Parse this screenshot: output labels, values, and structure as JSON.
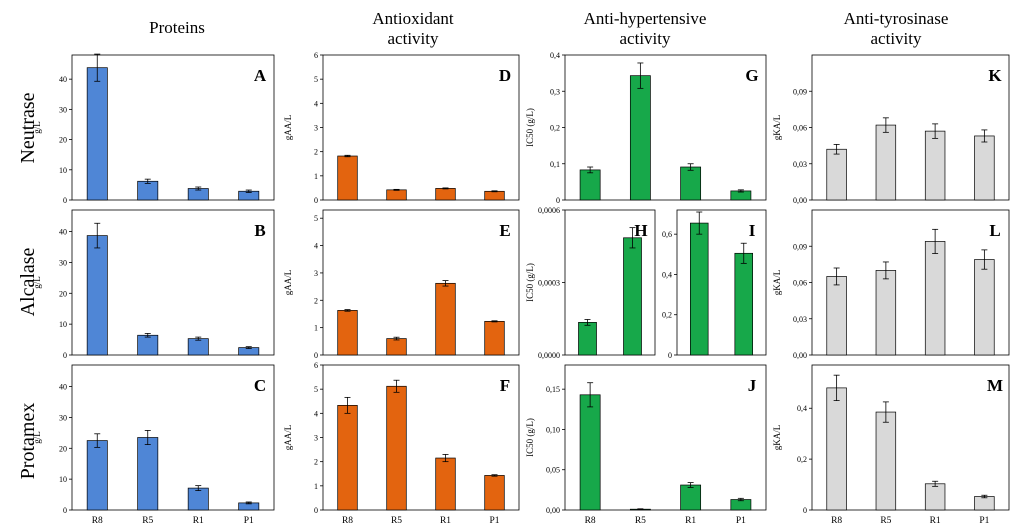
{
  "columns": [
    "Proteins",
    "Antioxidant\nactivity",
    "Anti-hypertensive\nactivity",
    "Anti-tyrosinase\nactivity"
  ],
  "rows": [
    "Neutrase",
    "Alcalase",
    "Protamex"
  ],
  "colors": {
    "blue": "#4f86d6",
    "orange": "#e3640f",
    "green": "#17a84a",
    "gray": "#d9d9d9"
  },
  "chart_data": [
    {
      "id": "A",
      "type": "bar",
      "color": "blue",
      "ylabel": "g/L",
      "ylim": [
        0,
        48
      ],
      "yticks": [
        "0",
        "10",
        "20",
        "30",
        "40"
      ],
      "categories": [
        "R8",
        "R5",
        "R1",
        "P1"
      ],
      "values": [
        43.8,
        6.2,
        3.8,
        2.9
      ],
      "errors": [
        4.5,
        0.7,
        0.5,
        0.4
      ]
    },
    {
      "id": "B",
      "type": "bar",
      "color": "blue",
      "ylabel": "g/L",
      "ylim": [
        0,
        47
      ],
      "yticks": [
        "0",
        "10",
        "20",
        "30",
        "40"
      ],
      "categories": [
        "R8",
        "R5",
        "R1",
        "P1"
      ],
      "values": [
        38.7,
        6.4,
        5.3,
        2.4
      ],
      "errors": [
        4.0,
        0.6,
        0.5,
        0.3
      ]
    },
    {
      "id": "C",
      "type": "bar",
      "color": "blue",
      "ylabel": "g/L",
      "ylim": [
        0,
        47
      ],
      "yticks": [
        "0",
        "10",
        "20",
        "30",
        "40"
      ],
      "categories": [
        "R8",
        "R5",
        "R1",
        "P1"
      ],
      "values": [
        22.5,
        23.5,
        7.1,
        2.3
      ],
      "errors": [
        2.2,
        2.3,
        0.8,
        0.3
      ]
    },
    {
      "id": "D",
      "type": "bar",
      "color": "orange",
      "ylabel": "gAA/L",
      "ylim": [
        0,
        6
      ],
      "yticks": [
        "0",
        "1",
        "2",
        "3",
        "4",
        "5",
        "6"
      ],
      "categories": [
        "R8",
        "R5",
        "R1",
        "P1"
      ],
      "values": [
        1.82,
        0.42,
        0.48,
        0.36
      ],
      "errors": [
        0.03,
        0.02,
        0.02,
        0.02
      ]
    },
    {
      "id": "E",
      "type": "bar",
      "color": "orange",
      "ylabel": "gAA/L",
      "ylim": [
        0,
        5.3
      ],
      "yticks": [
        "0",
        "1",
        "2",
        "3",
        "4",
        "5"
      ],
      "categories": [
        "R8",
        "R5",
        "R1",
        "P1"
      ],
      "values": [
        1.63,
        0.6,
        2.62,
        1.23
      ],
      "errors": [
        0.03,
        0.05,
        0.1,
        0.02
      ]
    },
    {
      "id": "F",
      "type": "bar",
      "color": "orange",
      "ylabel": "gAA/L",
      "ylim": [
        0,
        6
      ],
      "yticks": [
        "0",
        "1",
        "2",
        "3",
        "4",
        "5",
        "6"
      ],
      "categories": [
        "R8",
        "R5",
        "R1",
        "P1"
      ],
      "values": [
        4.33,
        5.12,
        2.15,
        1.43
      ],
      "errors": [
        0.33,
        0.25,
        0.15,
        0.03
      ]
    },
    {
      "id": "G",
      "type": "bar",
      "color": "green",
      "ylabel": "IC50 (g/L)",
      "ylim": [
        0,
        0.4
      ],
      "yticks": [
        "0",
        "0,1",
        "0,2",
        "0,3",
        "0,4"
      ],
      "categories": [
        "R8",
        "R5",
        "R1",
        "P1"
      ],
      "values": [
        0.083,
        0.343,
        0.091,
        0.025
      ],
      "errors": [
        0.008,
        0.035,
        0.009,
        0.003
      ]
    },
    {
      "id": "H",
      "type": "bar",
      "color": "green",
      "ylabel": "IC50 (g/L)",
      "ylim": [
        0,
        0.0006
      ],
      "yticks": [
        "0,0000",
        "0,0003",
        "0,0006"
      ],
      "categories": [
        "R8",
        "R5"
      ],
      "values": [
        0.000135,
        0.000485
      ],
      "errors": [
        1.2e-05,
        4.2e-05
      ]
    },
    {
      "id": "I",
      "type": "bar",
      "color": "green",
      "ylabel": "",
      "ylim": [
        0,
        0.72
      ],
      "yticks": [
        "0",
        "0,2",
        "0,4",
        "0,6"
      ],
      "categories": [
        "R1",
        "P1"
      ],
      "values": [
        0.655,
        0.505
      ],
      "errors": [
        0.055,
        0.05
      ]
    },
    {
      "id": "J",
      "type": "bar",
      "color": "green",
      "ylabel": "IC50 (g/L)",
      "ylim": [
        0,
        0.18
      ],
      "yticks": [
        "0,00",
        "0,05",
        "0,10",
        "0,15"
      ],
      "categories": [
        "R8",
        "R5",
        "R1",
        "P1"
      ],
      "values": [
        0.143,
        0.001,
        0.031,
        0.013
      ],
      "errors": [
        0.015,
        0.0005,
        0.003,
        0.0015
      ]
    },
    {
      "id": "K",
      "type": "bar",
      "color": "gray",
      "ylabel": "gKA/L",
      "ylim": [
        0,
        0.12
      ],
      "yticks": [
        "0,00",
        "0,03",
        "0,06",
        "0,09"
      ],
      "categories": [
        "R8",
        "R5",
        "R1",
        "P1"
      ],
      "values": [
        0.042,
        0.062,
        0.057,
        0.053
      ],
      "errors": [
        0.004,
        0.006,
        0.006,
        0.005
      ]
    },
    {
      "id": "L",
      "type": "bar",
      "color": "gray",
      "ylabel": "gKA/L",
      "ylim": [
        0,
        0.12
      ],
      "yticks": [
        "0,00",
        "0,03",
        "0,06",
        "0,09"
      ],
      "categories": [
        "R8",
        "R5",
        "R1",
        "P1"
      ],
      "values": [
        0.065,
        0.07,
        0.094,
        0.079
      ],
      "errors": [
        0.007,
        0.007,
        0.01,
        0.008
      ]
    },
    {
      "id": "M",
      "type": "bar",
      "color": "gray",
      "ylabel": "gKA/L",
      "ylim": [
        0,
        0.57
      ],
      "yticks": [
        "0",
        "0,2",
        "0,4"
      ],
      "categories": [
        "R8",
        "R5",
        "R1",
        "P1"
      ],
      "values": [
        0.48,
        0.385,
        0.103,
        0.053
      ],
      "errors": [
        0.05,
        0.04,
        0.01,
        0.005
      ]
    }
  ]
}
